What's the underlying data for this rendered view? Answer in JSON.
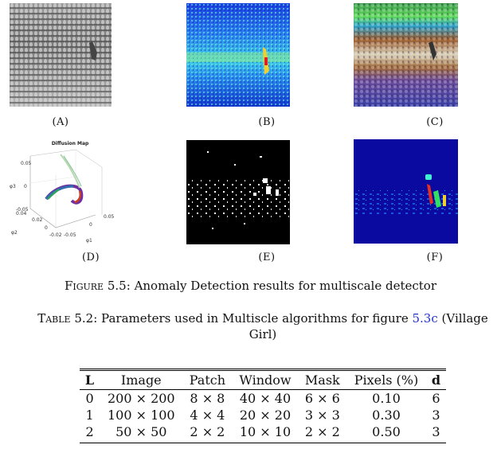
{
  "panels": [
    {
      "label": "(A)"
    },
    {
      "label": "(B)"
    },
    {
      "label": "(C)"
    },
    {
      "label": "(D)",
      "plot_title": "Diffusion Map",
      "axis_labels": [
        "φ3",
        "φ2",
        "φ1"
      ],
      "ticks": [
        "0.05",
        "0",
        "-0.05",
        "0.04",
        "0.02",
        "0",
        "-0.02",
        "-0.05",
        "0",
        "0.05"
      ]
    },
    {
      "label": "(E)"
    },
    {
      "label": "(F)"
    }
  ],
  "figure_caption": {
    "prefix": "Figure 5.5:",
    "text": "Anomaly Detection results for multiscale detector"
  },
  "table_caption": {
    "prefix": "Table 5.2:",
    "text": "Parameters used in Multiscle algorithms for figure",
    "ref": "5.3c",
    "suffix": "(Village Girl)"
  },
  "table": {
    "headers": [
      "L",
      "Image",
      "Patch",
      "Window",
      "Mask",
      "Pixels (%)",
      "d"
    ],
    "rows": [
      [
        "0",
        "200 × 200",
        "8 × 8",
        "40 × 40",
        "6 × 6",
        "0.10",
        "6"
      ],
      [
        "1",
        "100 × 100",
        "4 × 4",
        "20 × 20",
        "3 × 3",
        "0.30",
        "3"
      ],
      [
        "2",
        "50 × 50",
        "2 × 2",
        "10 × 10",
        "2 × 2",
        "0.50",
        "3"
      ]
    ]
  }
}
